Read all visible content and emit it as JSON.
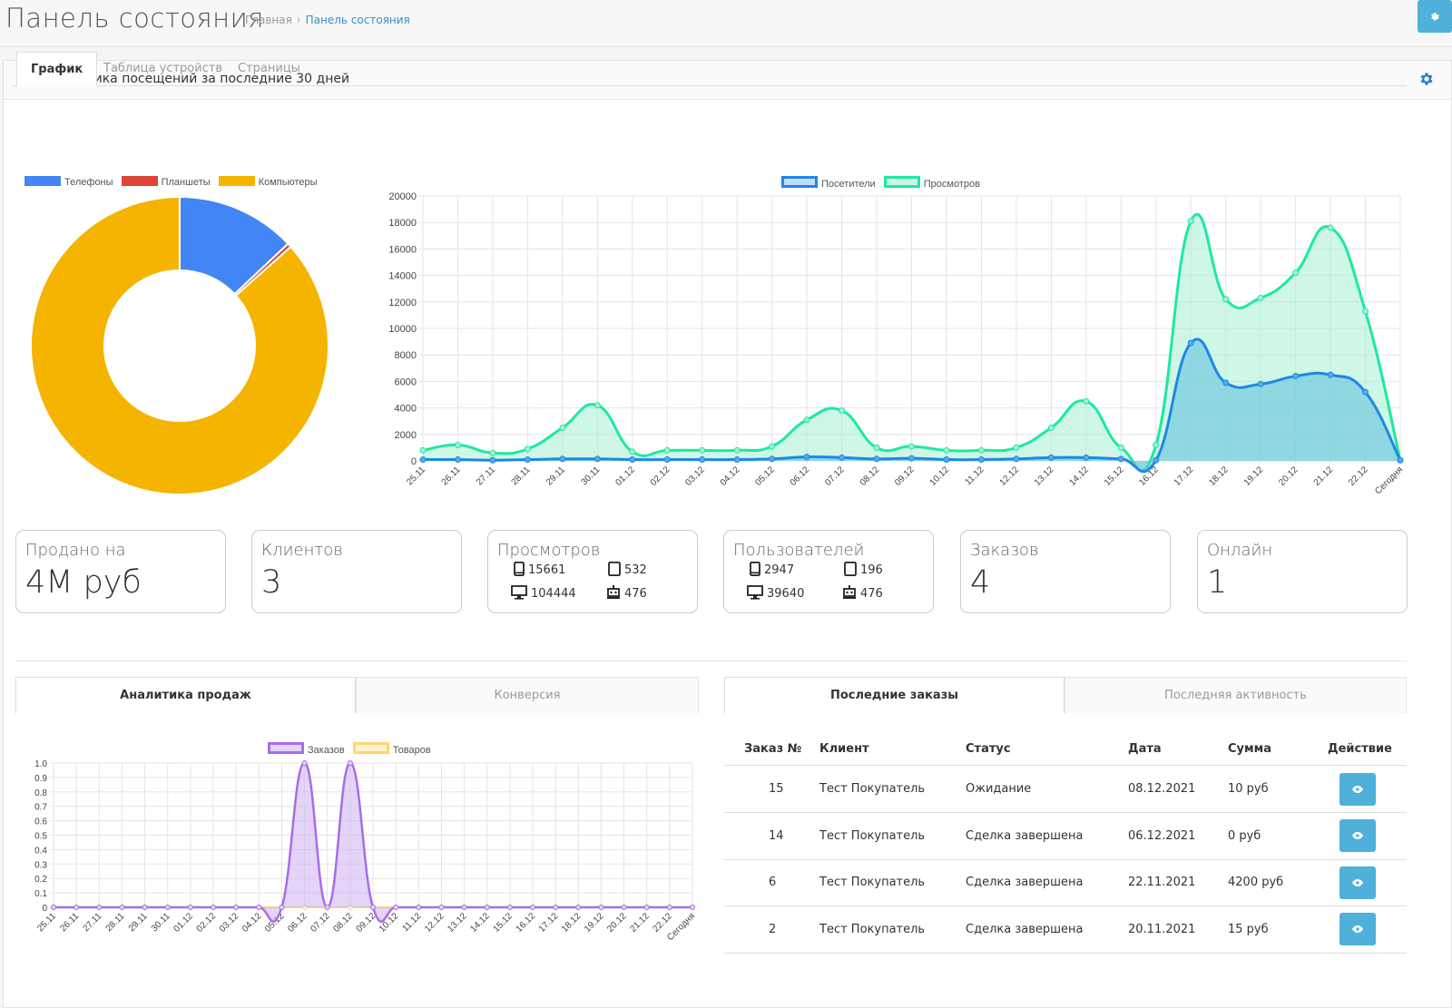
{
  "header": {
    "title": "Панель состояния",
    "breadcrumb": [
      "Главная",
      "Панель состояния"
    ]
  },
  "panel": {
    "title": "Статистика посещений за последние 30 дней",
    "tabs": [
      "График",
      "Таблица устройств",
      "Страницы"
    ]
  },
  "colors": {
    "phones": "#4285f4",
    "tablets": "#db4437",
    "computers": "#f4b400",
    "visitors": "#1e88e5",
    "views": "#1de9a0",
    "orders": "#a66ee8",
    "goods": "#ffd670",
    "button": "#4fb0d9"
  },
  "chart_data": [
    {
      "type": "pie",
      "legend": [
        "Телефоны",
        "Планшеты",
        "Компьютеры"
      ],
      "values": [
        15661,
        532,
        104444
      ],
      "legend_position": "top"
    },
    {
      "type": "area",
      "categories": [
        "25.11",
        "26.11",
        "27.11",
        "28.11",
        "29.11",
        "30.11",
        "01.12",
        "02.12",
        "03.12",
        "04.12",
        "05.12",
        "06.12",
        "07.12",
        "08.12",
        "09.12",
        "10.12",
        "11.12",
        "12.12",
        "13.12",
        "14.12",
        "15.12",
        "16.12",
        "17.12",
        "18.12",
        "19.12",
        "20.12",
        "21.12",
        "22.12",
        "Сегодня"
      ],
      "series": [
        {
          "name": "Посетители",
          "values": [
            100,
            100,
            50,
            100,
            150,
            150,
            100,
            100,
            100,
            100,
            150,
            300,
            250,
            150,
            200,
            100,
            100,
            150,
            250,
            250,
            150,
            50,
            8900,
            5900,
            5800,
            6400,
            6500,
            5200,
            50
          ]
        },
        {
          "name": "Просмотров",
          "values": [
            800,
            1200,
            600,
            900,
            2500,
            4200,
            700,
            800,
            800,
            800,
            1100,
            3100,
            3800,
            1000,
            1100,
            800,
            800,
            1000,
            2500,
            4500,
            1000,
            1200,
            18100,
            12200,
            12300,
            14200,
            17600,
            11300,
            50
          ]
        }
      ],
      "yticks": [
        0,
        2000,
        4000,
        6000,
        8000,
        10000,
        12000,
        14000,
        16000,
        18000,
        20000
      ],
      "ylim": [
        0,
        20000
      ],
      "grid": true,
      "legend_position": "top"
    },
    {
      "type": "area",
      "categories": [
        "25.11",
        "26.11",
        "27.11",
        "28.11",
        "29.11",
        "30.11",
        "01.12",
        "02.12",
        "03.12",
        "04.12",
        "05.12",
        "06.12",
        "07.12",
        "08.12",
        "09.12",
        "10.12",
        "11.12",
        "12.12",
        "13.12",
        "14.12",
        "15.12",
        "16.12",
        "17.12",
        "18.12",
        "19.12",
        "20.12",
        "21.12",
        "22.12",
        "Сегодня"
      ],
      "series": [
        {
          "name": "Заказов",
          "values": [
            0,
            0,
            0,
            0,
            0,
            0,
            0,
            0,
            0,
            0,
            0,
            1,
            0,
            1,
            0,
            0,
            0,
            0,
            0,
            0,
            0,
            0,
            0,
            0,
            0,
            0,
            0,
            0,
            0
          ]
        },
        {
          "name": "Товаров",
          "values": [
            0,
            0,
            0,
            0,
            0,
            0,
            0,
            0,
            0,
            0,
            0,
            0,
            0,
            0,
            0,
            0,
            0,
            0,
            0,
            0,
            0,
            0,
            0,
            0,
            0,
            0,
            0,
            0,
            0
          ]
        }
      ],
      "yticks": [
        "0",
        "0.1",
        "0.2",
        "0.3",
        "0.4",
        "0.5",
        "0.6",
        "0.7",
        "0.8",
        "0.9",
        "1.0"
      ],
      "ylim": [
        0,
        1
      ],
      "grid": true,
      "legend_position": "top"
    }
  ],
  "stats": {
    "sold_label": "Продано на",
    "sold_value": "4M руб",
    "clients_label": "Клиентов",
    "clients_value": "3",
    "views_label": "Просмотров",
    "views": {
      "phone": "15661",
      "tablet": "532",
      "desktop": "104444",
      "bot": "476"
    },
    "users_label": "Пользователей",
    "users": {
      "phone": "2947",
      "tablet": "196",
      "desktop": "39640",
      "bot": "476"
    },
    "orders_label": "Заказов",
    "orders_value": "4",
    "online_label": "Онлайн",
    "online_value": "1"
  },
  "bottom_left_tabs": [
    "Аналитика продаж",
    "Конверсия"
  ],
  "bottom_right_tabs": [
    "Последние заказы",
    "Последняя активность"
  ],
  "orders_table": {
    "columns": [
      "Заказ №",
      "Клиент",
      "Статус",
      "Дата",
      "Сумма",
      "Действие"
    ],
    "rows": [
      {
        "id": "15",
        "client": "Тест Покупатель",
        "status": "Ожидание",
        "date": "08.12.2021",
        "sum": "10 руб"
      },
      {
        "id": "14",
        "client": "Тест Покупатель",
        "status": "Сделка завершена",
        "date": "06.12.2021",
        "sum": "0 руб"
      },
      {
        "id": "6",
        "client": "Тест Покупатель",
        "status": "Сделка завершена",
        "date": "22.11.2021",
        "sum": "4200 руб"
      },
      {
        "id": "2",
        "client": "Тест Покупатель",
        "status": "Сделка завершена",
        "date": "20.11.2021",
        "sum": "15 руб"
      }
    ]
  }
}
